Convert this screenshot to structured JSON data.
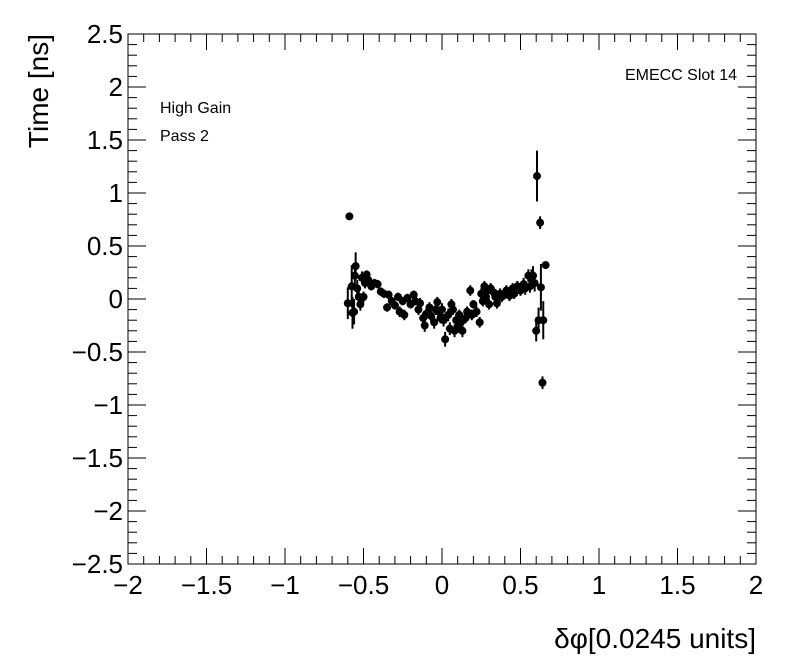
{
  "chart_data": {
    "type": "scatter",
    "title": "",
    "xlabel": "δφ[0.0245 units]",
    "ylabel": "Time [ns]",
    "xlim": [
      -2,
      2
    ],
    "ylim": [
      -2.5,
      2.5
    ],
    "x_ticks": [
      -2,
      -1.5,
      -1,
      -0.5,
      0,
      0.5,
      1,
      1.5,
      2
    ],
    "x_tick_labels": [
      "−2",
      "−1.5",
      "−1",
      "−0.5",
      "0",
      "0.5",
      "1",
      "1.5",
      "2"
    ],
    "y_ticks": [
      2.5,
      2,
      1.5,
      1,
      0.5,
      0,
      -0.5,
      -1,
      -1.5,
      -2,
      -2.5
    ],
    "y_tick_labels": [
      "2.5",
      "2",
      "1.5",
      "1",
      "0.5",
      "0",
      "−0.5",
      "−1",
      "−1.5",
      "−2",
      "−2.5"
    ],
    "grid": false,
    "annotations": {
      "slot": "EMECC Slot 14",
      "gain": "High Gain",
      "pass": "Pass 2"
    },
    "marker_color": "#000000",
    "series": [
      {
        "points": [
          {
            "x": -0.6,
            "y": -0.04,
            "err": 0.15
          },
          {
            "x": -0.59,
            "y": 0.78,
            "err": 0.02
          },
          {
            "x": -0.575,
            "y": 0.12,
            "err": 0.2
          },
          {
            "x": -0.57,
            "y": -0.13,
            "err": 0.15
          },
          {
            "x": -0.56,
            "y": -0.12,
            "err": 0.12
          },
          {
            "x": -0.555,
            "y": 0.22,
            "err": 0.12
          },
          {
            "x": -0.55,
            "y": 0.31,
            "err": 0.13
          },
          {
            "x": -0.54,
            "y": 0.1,
            "err": 0.08
          },
          {
            "x": -0.53,
            "y": 0.02,
            "err": 0.08
          },
          {
            "x": -0.52,
            "y": -0.05,
            "err": 0.06
          },
          {
            "x": -0.51,
            "y": 0.2,
            "err": 0.06
          },
          {
            "x": -0.5,
            "y": 0.02,
            "err": 0.05
          },
          {
            "x": -0.49,
            "y": 0.15,
            "err": 0.05
          },
          {
            "x": -0.48,
            "y": 0.23,
            "err": 0.04
          },
          {
            "x": -0.47,
            "y": 0.18,
            "err": 0.04
          },
          {
            "x": -0.45,
            "y": 0.12,
            "err": 0.04
          },
          {
            "x": -0.43,
            "y": 0.15,
            "err": 0.04
          },
          {
            "x": -0.41,
            "y": 0.14,
            "err": 0.04
          },
          {
            "x": -0.39,
            "y": 0.07,
            "err": 0.04
          },
          {
            "x": -0.37,
            "y": 0.05,
            "err": 0.04
          },
          {
            "x": -0.35,
            "y": -0.08,
            "err": 0.04
          },
          {
            "x": -0.34,
            "y": 0.04,
            "err": 0.04
          },
          {
            "x": -0.32,
            "y": -0.02,
            "err": 0.04
          },
          {
            "x": -0.3,
            "y": -0.06,
            "err": 0.04
          },
          {
            "x": -0.28,
            "y": 0.02,
            "err": 0.04
          },
          {
            "x": -0.27,
            "y": -0.12,
            "err": 0.05
          },
          {
            "x": -0.25,
            "y": -0.02,
            "err": 0.04
          },
          {
            "x": -0.24,
            "y": -0.15,
            "err": 0.05
          },
          {
            "x": -0.22,
            "y": 0.01,
            "err": 0.04
          },
          {
            "x": -0.2,
            "y": -0.05,
            "err": 0.04
          },
          {
            "x": -0.18,
            "y": 0.04,
            "err": 0.04
          },
          {
            "x": -0.17,
            "y": -0.02,
            "err": 0.04
          },
          {
            "x": -0.15,
            "y": -0.1,
            "err": 0.05
          },
          {
            "x": -0.14,
            "y": -0.04,
            "err": 0.05
          },
          {
            "x": -0.12,
            "y": -0.18,
            "err": 0.05
          },
          {
            "x": -0.11,
            "y": -0.25,
            "err": 0.06
          },
          {
            "x": -0.1,
            "y": -0.14,
            "err": 0.05
          },
          {
            "x": -0.08,
            "y": -0.08,
            "err": 0.05
          },
          {
            "x": -0.07,
            "y": -0.16,
            "err": 0.05
          },
          {
            "x": -0.05,
            "y": -0.22,
            "err": 0.06
          },
          {
            "x": -0.04,
            "y": -0.1,
            "err": 0.05
          },
          {
            "x": -0.03,
            "y": -0.03,
            "err": 0.05
          },
          {
            "x": -0.02,
            "y": -0.12,
            "err": 0.05
          },
          {
            "x": -0.01,
            "y": -0.18,
            "err": 0.05
          },
          {
            "x": 0.0,
            "y": -0.1,
            "err": 0.06
          },
          {
            "x": 0.01,
            "y": -0.2,
            "err": 0.06
          },
          {
            "x": 0.02,
            "y": -0.38,
            "err": 0.07
          },
          {
            "x": 0.04,
            "y": -0.15,
            "err": 0.06
          },
          {
            "x": 0.05,
            "y": -0.28,
            "err": 0.06
          },
          {
            "x": 0.06,
            "y": -0.05,
            "err": 0.05
          },
          {
            "x": 0.07,
            "y": -0.1,
            "err": 0.05
          },
          {
            "x": 0.08,
            "y": -0.3,
            "err": 0.06
          },
          {
            "x": 0.09,
            "y": -0.2,
            "err": 0.06
          },
          {
            "x": 0.1,
            "y": -0.26,
            "err": 0.06
          },
          {
            "x": 0.11,
            "y": -0.15,
            "err": 0.05
          },
          {
            "x": 0.12,
            "y": -0.22,
            "err": 0.05
          },
          {
            "x": 0.13,
            "y": -0.3,
            "err": 0.06
          },
          {
            "x": 0.15,
            "y": -0.18,
            "err": 0.05
          },
          {
            "x": 0.16,
            "y": -0.12,
            "err": 0.05
          },
          {
            "x": 0.18,
            "y": 0.08,
            "err": 0.05
          },
          {
            "x": 0.19,
            "y": -0.15,
            "err": 0.05
          },
          {
            "x": 0.2,
            "y": -0.05,
            "err": 0.04
          },
          {
            "x": 0.22,
            "y": -0.12,
            "err": 0.05
          },
          {
            "x": 0.24,
            "y": -0.22,
            "err": 0.05
          },
          {
            "x": 0.25,
            "y": 0.05,
            "err": 0.05
          },
          {
            "x": 0.26,
            "y": -0.02,
            "err": 0.05
          },
          {
            "x": 0.27,
            "y": 0.12,
            "err": 0.05
          },
          {
            "x": 0.28,
            "y": 0.02,
            "err": 0.05
          },
          {
            "x": 0.29,
            "y": 0.08,
            "err": 0.05
          },
          {
            "x": 0.3,
            "y": -0.05,
            "err": 0.05
          },
          {
            "x": 0.31,
            "y": 0.1,
            "err": 0.05
          },
          {
            "x": 0.33,
            "y": 0.06,
            "err": 0.05
          },
          {
            "x": 0.34,
            "y": 0.02,
            "err": 0.05
          },
          {
            "x": 0.35,
            "y": -0.04,
            "err": 0.05
          },
          {
            "x": 0.37,
            "y": 0.05,
            "err": 0.05
          },
          {
            "x": 0.38,
            "y": 0.02,
            "err": 0.05
          },
          {
            "x": 0.4,
            "y": 0.05,
            "err": 0.05
          },
          {
            "x": 0.41,
            "y": 0.08,
            "err": 0.05
          },
          {
            "x": 0.43,
            "y": 0.03,
            "err": 0.05
          },
          {
            "x": 0.45,
            "y": 0.1,
            "err": 0.05
          },
          {
            "x": 0.46,
            "y": 0.05,
            "err": 0.05
          },
          {
            "x": 0.48,
            "y": 0.12,
            "err": 0.05
          },
          {
            "x": 0.5,
            "y": 0.08,
            "err": 0.05
          },
          {
            "x": 0.52,
            "y": 0.14,
            "err": 0.06
          },
          {
            "x": 0.53,
            "y": 0.1,
            "err": 0.06
          },
          {
            "x": 0.55,
            "y": 0.22,
            "err": 0.06
          },
          {
            "x": 0.56,
            "y": 0.12,
            "err": 0.06
          },
          {
            "x": 0.57,
            "y": 0.2,
            "err": 0.08
          },
          {
            "x": 0.58,
            "y": 0.22,
            "err": 0.09
          },
          {
            "x": 0.59,
            "y": 0.15,
            "err": 0.08
          },
          {
            "x": 0.6,
            "y": -0.3,
            "err": 0.1
          },
          {
            "x": 0.605,
            "y": 1.16,
            "err": 0.24
          },
          {
            "x": 0.615,
            "y": -0.2,
            "err": 0.12
          },
          {
            "x": 0.625,
            "y": 0.72,
            "err": 0.06
          },
          {
            "x": 0.63,
            "y": 0.11,
            "err": 0.22
          },
          {
            "x": 0.64,
            "y": -0.79,
            "err": 0.06
          },
          {
            "x": 0.645,
            "y": -0.2,
            "err": 0.18
          },
          {
            "x": 0.66,
            "y": 0.32,
            "err": 0.02
          }
        ]
      }
    ]
  }
}
